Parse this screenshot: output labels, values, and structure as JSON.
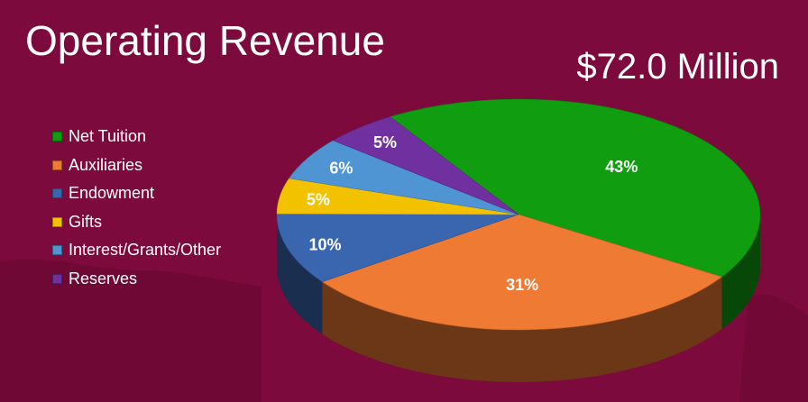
{
  "title": "Operating Revenue",
  "total": "$72.0 Million",
  "colors": {
    "background": "#7d0a3c"
  },
  "chart_data": {
    "type": "pie",
    "title": "Operating Revenue",
    "legend_position": "left",
    "slices": [
      {
        "label": "Net Tuition",
        "value": 43,
        "value_label": "43%",
        "color": "#109e10"
      },
      {
        "label": "Auxiliaries",
        "value": 31,
        "value_label": "31%",
        "color": "#ee7a33"
      },
      {
        "label": "Endowment",
        "value": 10,
        "value_label": "10%",
        "color": "#3a66b0"
      },
      {
        "label": "Gifts",
        "value": 5,
        "value_label": "5%",
        "color": "#f2c200"
      },
      {
        "label": "Interest/Grants/Other",
        "value": 6,
        "value_label": "6%",
        "color": "#4f95d4"
      },
      {
        "label": "Reserves",
        "value": 5,
        "value_label": "5%",
        "color": "#7030a0"
      }
    ]
  }
}
